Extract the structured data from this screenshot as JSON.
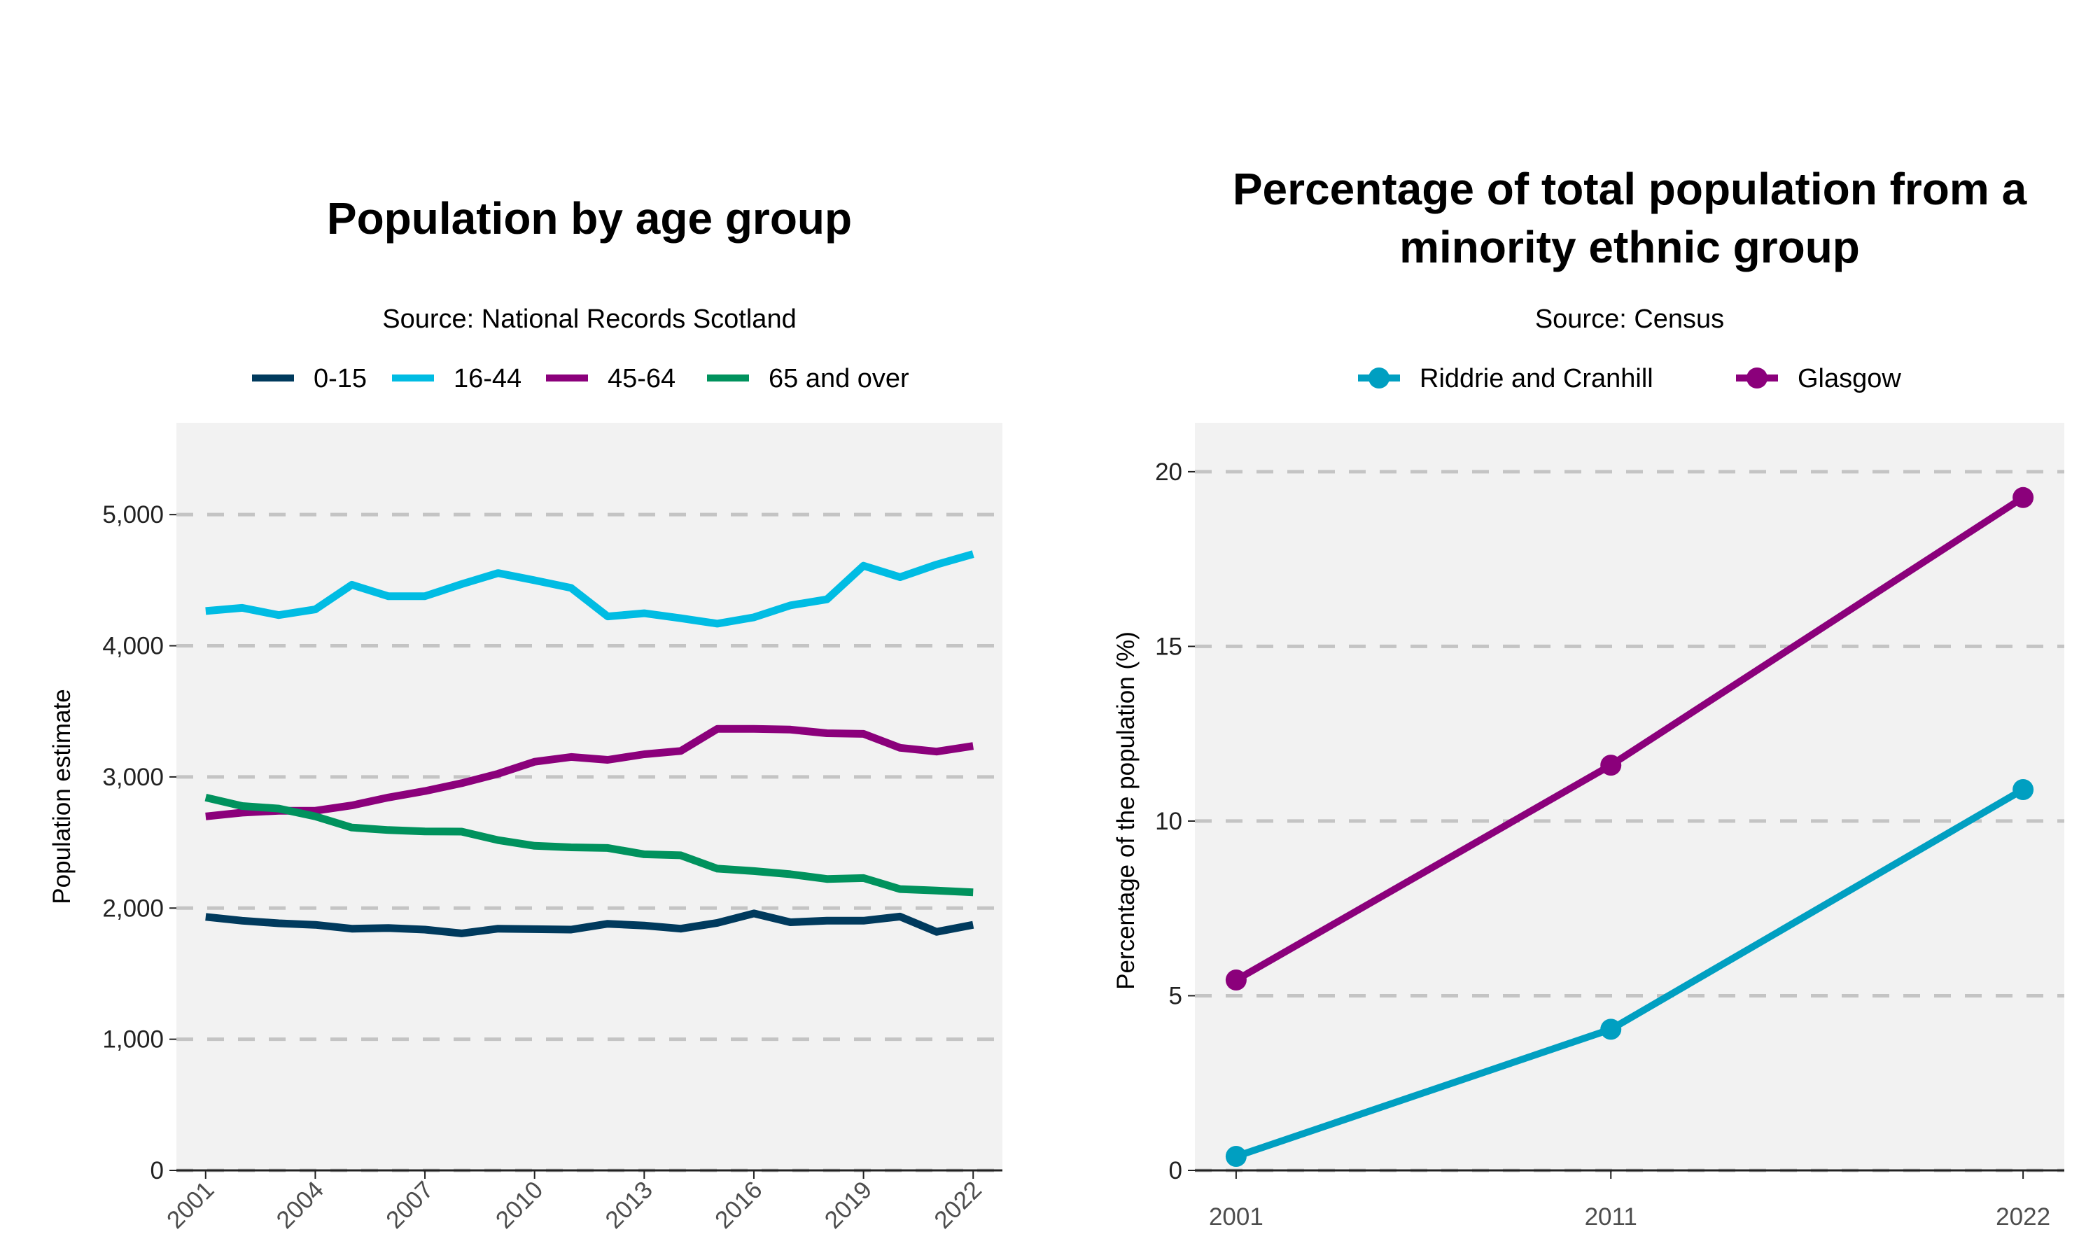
{
  "chart_data": [
    {
      "type": "line",
      "title": "Population by age group",
      "subtitle": "Source: National Records Scotland",
      "xlabel": "",
      "ylabel": "Population estimate",
      "legend_position": "top",
      "grid": "horizontal dashed",
      "x": [
        2001,
        2002,
        2003,
        2004,
        2005,
        2006,
        2007,
        2008,
        2009,
        2010,
        2011,
        2012,
        2013,
        2014,
        2015,
        2016,
        2017,
        2018,
        2019,
        2020,
        2021,
        2022
      ],
      "xticks": [
        "2001",
        "2004",
        "2007",
        "2010",
        "2013",
        "2016",
        "2019",
        "2022"
      ],
      "yticks": [
        "0",
        "1,000",
        "2,000",
        "3,000",
        "4,000",
        "5,000"
      ],
      "xlim": [
        2000.2,
        2022.8
      ],
      "ylim": [
        0,
        5700
      ],
      "series": [
        {
          "name": "0-15",
          "color": "#003a5d",
          "values": [
            1933,
            1904,
            1884,
            1872,
            1843,
            1848,
            1836,
            1807,
            1843,
            1839,
            1836,
            1880,
            1867,
            1843,
            1887,
            1959,
            1892,
            1904,
            1904,
            1935,
            1819,
            1872
          ]
        },
        {
          "name": "16-44",
          "color": "#00bce3",
          "values": [
            4265,
            4289,
            4234,
            4277,
            4465,
            4378,
            4378,
            4470,
            4554,
            4499,
            4441,
            4224,
            4248,
            4210,
            4169,
            4217,
            4308,
            4354,
            4610,
            4523,
            4619,
            4699
          ]
        },
        {
          "name": "45-64",
          "color": "#8b007b",
          "values": [
            2699,
            2728,
            2742,
            2742,
            2783,
            2843,
            2892,
            2952,
            3024,
            3116,
            3152,
            3130,
            3173,
            3198,
            3366,
            3366,
            3361,
            3333,
            3328,
            3222,
            3193,
            3236
          ]
        },
        {
          "name": "65 and over",
          "color": "#00925d",
          "values": [
            2843,
            2778,
            2759,
            2699,
            2614,
            2595,
            2585,
            2583,
            2518,
            2475,
            2463,
            2458,
            2410,
            2402,
            2301,
            2282,
            2258,
            2222,
            2229,
            2145,
            2133,
            2120
          ]
        }
      ]
    },
    {
      "type": "line",
      "title": "Percentage of total population from a minority ethnic group",
      "title_lines": [
        "Percentage of total population from a",
        "minority ethnic group"
      ],
      "subtitle": "Source: Census",
      "xlabel": "",
      "ylabel": "Percentage of the population (%)",
      "legend_position": "top",
      "grid": "horizontal dashed",
      "x": [
        2001,
        2011,
        2022
      ],
      "xticks": [
        "2001",
        "2011",
        "2022"
      ],
      "yticks": [
        "0",
        "5",
        "10",
        "15",
        "20"
      ],
      "xlim": [
        1999.9,
        2023.1
      ],
      "ylim": [
        0,
        21.4
      ],
      "series": [
        {
          "name": "Riddrie and Cranhill",
          "color": "#009fc1",
          "values": [
            0.4,
            4.04,
            10.9
          ]
        },
        {
          "name": "Glasgow",
          "color": "#8b007b",
          "values": [
            5.45,
            11.6,
            19.26
          ]
        }
      ]
    }
  ]
}
